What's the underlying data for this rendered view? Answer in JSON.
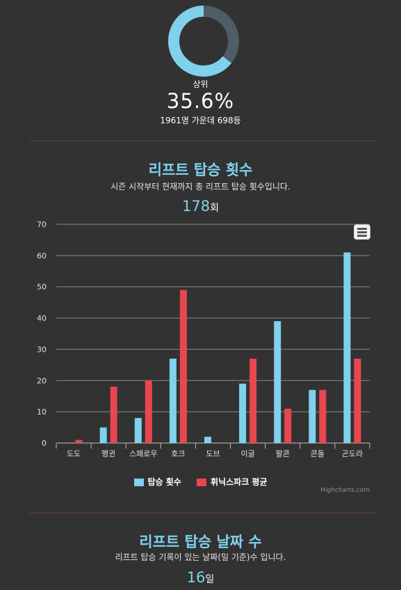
{
  "rank": {
    "label": "상위",
    "value": "35.6%",
    "fraction": 0.356,
    "detail": "1961명 가운데 698등"
  },
  "colors": {
    "background": "#323232",
    "accent": "#7fd1ec",
    "ride_series": "#7fd1ec",
    "average_series": "#e8474f",
    "donut_track": "#4e5d66",
    "divider": "#6a3e3b"
  },
  "lift_rides": {
    "title": "리프트 탑승 횟수",
    "description": "시즌 시작부터 현재까지 총 리프트 탑승 횟수입니다.",
    "total": "178",
    "unit": "회"
  },
  "lift_days": {
    "title": "리프트 탑승 날짜 수",
    "description": "리프트 탑승 기록이 있는 날짜(일 기준)수 입니다.",
    "total": "16",
    "unit": "일"
  },
  "chart_data": {
    "type": "bar",
    "categories": [
      "도도",
      "펭귄",
      "스패로우",
      "호크",
      "도브",
      "이글",
      "팔콘",
      "콘돌",
      "곤도라"
    ],
    "series": [
      {
        "name": "탑승 횟수",
        "values": [
          0,
          5,
          8,
          27,
          2,
          19,
          39,
          17,
          61
        ]
      },
      {
        "name": "휘닉스파크 평균",
        "values": [
          1,
          18,
          20,
          49,
          0,
          27,
          11,
          17,
          27
        ]
      }
    ],
    "ylim": [
      0,
      70
    ],
    "yticks": [
      0,
      10,
      20,
      30,
      40,
      50,
      60,
      70
    ],
    "grid": true,
    "legend_position": "bottom-center",
    "credits": "Highcharts.com"
  },
  "icons": {
    "menu": "hamburger-menu-icon"
  }
}
